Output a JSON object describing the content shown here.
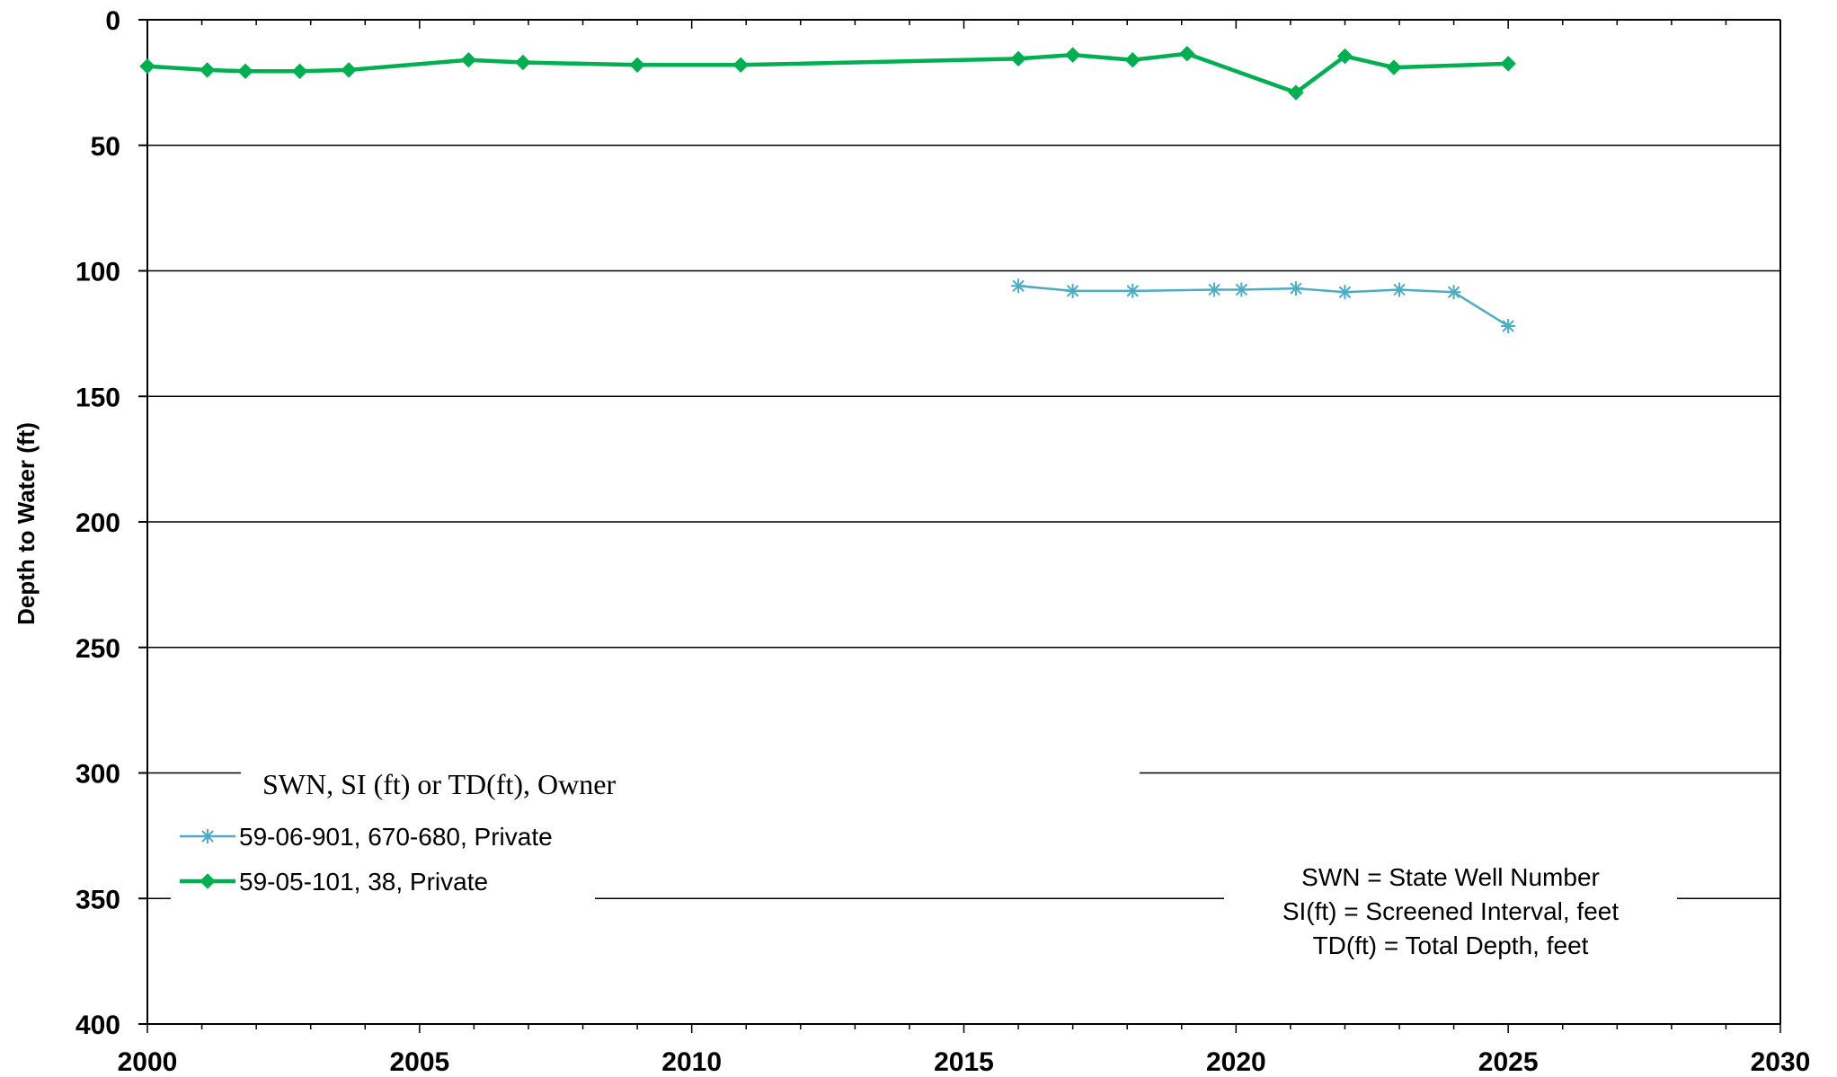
{
  "chart_data": {
    "type": "line",
    "title": "",
    "xlabel": "",
    "ylabel": "Depth to Water (ft)",
    "xlim": [
      2000,
      2030
    ],
    "ylim": [
      0,
      400
    ],
    "y_inverted": true,
    "grid": "horizontal",
    "x_ticks": [
      "2000",
      "2005",
      "2010",
      "2015",
      "2020",
      "2025",
      "2030"
    ],
    "y_ticks": [
      "0",
      "50",
      "100",
      "150",
      "200",
      "250",
      "300",
      "350",
      "400"
    ],
    "legend_title": "SWN, SI (ft) or TD(ft), Owner",
    "legend_position": "bottom-left",
    "series": [
      {
        "name": "59-06-901, 670-680, Private",
        "color": "#4bacc6",
        "marker": "asterisk",
        "x": [
          2016.0,
          2017.0,
          2018.1,
          2019.6,
          2020.1,
          2021.1,
          2022.0,
          2023.0,
          2024.0,
          2025.0
        ],
        "y": [
          106,
          108,
          108,
          107.5,
          107.5,
          107,
          108.5,
          107.5,
          108.5,
          122
        ]
      },
      {
        "name": "59-05-101, 38, Private",
        "color": "#00b050",
        "marker": "diamond",
        "x": [
          2000.0,
          2001.1,
          2001.8,
          2002.8,
          2003.7,
          2005.9,
          2006.9,
          2009.0,
          2010.9,
          2016.0,
          2017.0,
          2018.1,
          2019.1,
          2021.1,
          2022.0,
          2022.9,
          2025.0
        ],
        "y": [
          18.5,
          20,
          20.5,
          20.5,
          20,
          16,
          17,
          18,
          18,
          15.5,
          14,
          16,
          13.5,
          29,
          14.5,
          19,
          17.5
        ]
      }
    ],
    "annotation": [
      "SWN = State Well Number",
      "SI(ft) = Screened Interval, feet",
      "TD(ft) = Total Depth, feet"
    ]
  }
}
